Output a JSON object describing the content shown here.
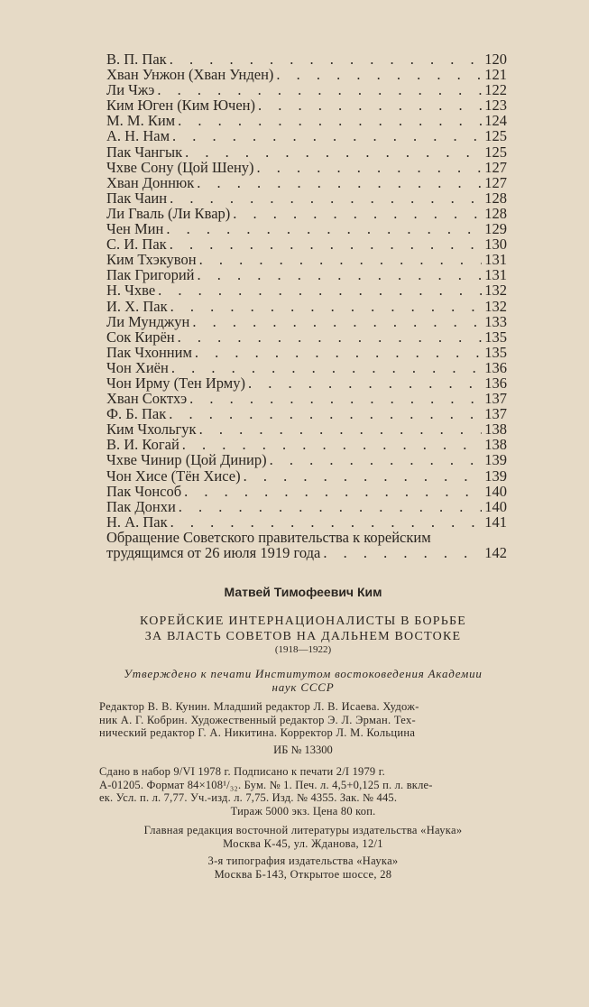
{
  "toc": [
    {
      "name": "В. П. Пак",
      "page": "120"
    },
    {
      "name": "Хван Унжон (Хван Унден)",
      "page": "121"
    },
    {
      "name": "Ли Чжэ",
      "page": "122"
    },
    {
      "name": "Ким Юген (Ким Ючен)",
      "page": "123"
    },
    {
      "name": "М. М. Ким",
      "page": "124"
    },
    {
      "name": "А. Н. Нам",
      "page": "125"
    },
    {
      "name": "Пак Чангык",
      "page": "125"
    },
    {
      "name": "Чхве Сону (Цой Шену)",
      "page": "127"
    },
    {
      "name": "Хван Доннюк",
      "page": "127"
    },
    {
      "name": "Пак Чаин",
      "page": "128"
    },
    {
      "name": "Ли Гваль (Ли Квар)",
      "page": "128"
    },
    {
      "name": "Чен Мин",
      "page": "129"
    },
    {
      "name": "С. И. Пак",
      "page": "130"
    },
    {
      "name": "Ким Тхэкувон",
      "page": "131"
    },
    {
      "name": "Пак Григорий",
      "page": "131"
    },
    {
      "name": "Н. Чхве",
      "page": "132"
    },
    {
      "name": "И. Х. Пак",
      "page": "132"
    },
    {
      "name": "Ли Мунджун",
      "page": "133"
    },
    {
      "name": "Сок Кирён",
      "page": "135"
    },
    {
      "name": "Пак Чхонним",
      "page": "135"
    },
    {
      "name": "Чон Хиён",
      "page": "136"
    },
    {
      "name": "Чон Ирму (Тен Ирму)",
      "page": "136"
    },
    {
      "name": "Хван Соктхэ",
      "page": "137"
    },
    {
      "name": "Ф. Б. Пак",
      "page": "137"
    },
    {
      "name": "Ким Чхольгук",
      "page": "138"
    },
    {
      "name": "В. И. Когай",
      "page": "138"
    },
    {
      "name": "Чхве Чинир (Цой Динир)",
      "page": "139"
    },
    {
      "name": "Чон Хисе (Тён Хисе)",
      "page": "139"
    },
    {
      "name": "Пак Чонсоб",
      "page": "140"
    },
    {
      "name": "Пак Донхи",
      "page": "140"
    },
    {
      "name": "Н. А. Пак",
      "page": "141"
    }
  ],
  "toc_last": {
    "line1": "Обращение Советского правительства к корейским",
    "line2": "трудящимся от 26 июля 1919 года",
    "page": "142"
  },
  "colophon": {
    "author": "Матвей Тимофеевич Ким",
    "title_line1": "КОРЕЙСКИЕ ИНТЕРНАЦИОНАЛИСТЫ В БОРЬБЕ",
    "title_line2": "ЗА ВЛАСТЬ СОВЕТОВ НА ДАЛЬНЕМ ВОСТОКЕ",
    "years": "(1918—1922)",
    "approved_line1": "Утверждено к печати Институтом востоковедения Академии",
    "approved_line2": "наук СССР",
    "editors_line1": "Редактор В. В. Кунин. Младший редактор Л. В. Исаева. Худож-",
    "editors_line2": "ник А. Г. Кобрин. Художественный редактор Э. Л. Эрман. Тех-",
    "editors_line3": "нический редактор Г. А. Никитина. Корректор Л. М. Кольцина",
    "ib": "ИБ № 13300",
    "print_line1": "Сдано в набор 9/VI 1978 г. Подписано к печати 2/I 1979 г.",
    "print_line2": "А-01205. Формат 84×108¹/₃₂. Бум. № 1. Печ. л. 4,5+0,125 п. л. вкле-",
    "print_line3": "ек. Усл. п. л. 7,77. Уч.-изд. л. 7,75. Изд. № 4355. Зак. № 445.",
    "print_line4": "Тираж 5000 экз. Цена 80 коп.",
    "pub_line1": "Главная редакция восточной литературы издательства «Наука»",
    "pub_line2": "Москва К-45, ул. Жданова, 12/1",
    "typo_line1": "3-я типография издательства «Наука»",
    "typo_line2": "Москва Б-143, Открытое шоссе, 28"
  }
}
